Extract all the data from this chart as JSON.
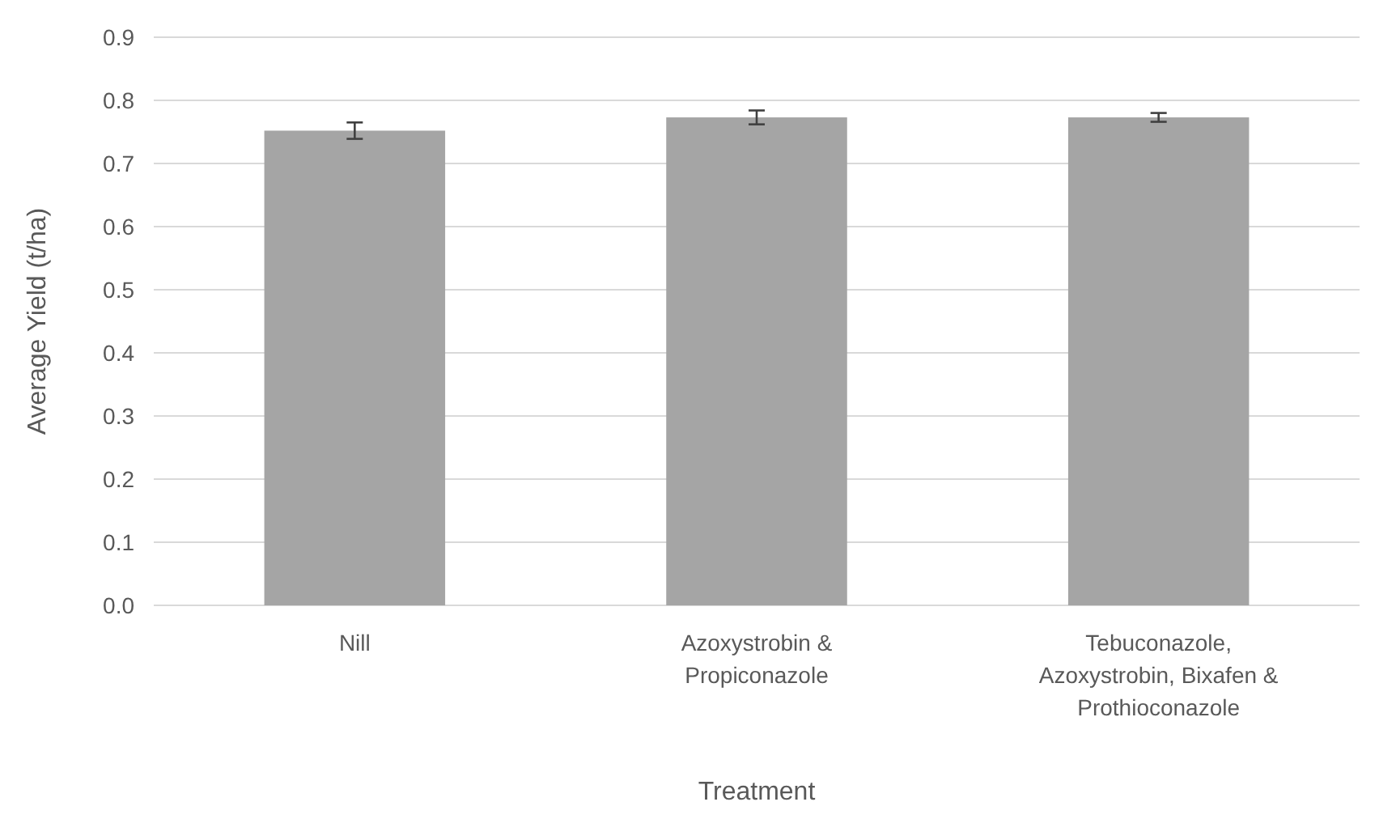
{
  "chart_data": {
    "type": "bar",
    "xlabel": "Treatment",
    "ylabel": "Average Yield (t/ha)",
    "categories": [
      "Nill",
      "Azoxystrobin & Propiconazole",
      "Tebuconazole, Azoxystrobin, Bixafen & Prothioconazole"
    ],
    "values": [
      0.752,
      0.773,
      0.773
    ],
    "errors": [
      0.013,
      0.011,
      0.007
    ],
    "color": "#a5a5a5",
    "ylim": [
      0,
      0.9
    ],
    "yticks": [
      {
        "value": 0,
        "label": "0.0"
      },
      0.1,
      0.2,
      0.3,
      0.4,
      0.5,
      0.6,
      0.7,
      0.8,
      0.9
    ],
    "grid": "y"
  }
}
